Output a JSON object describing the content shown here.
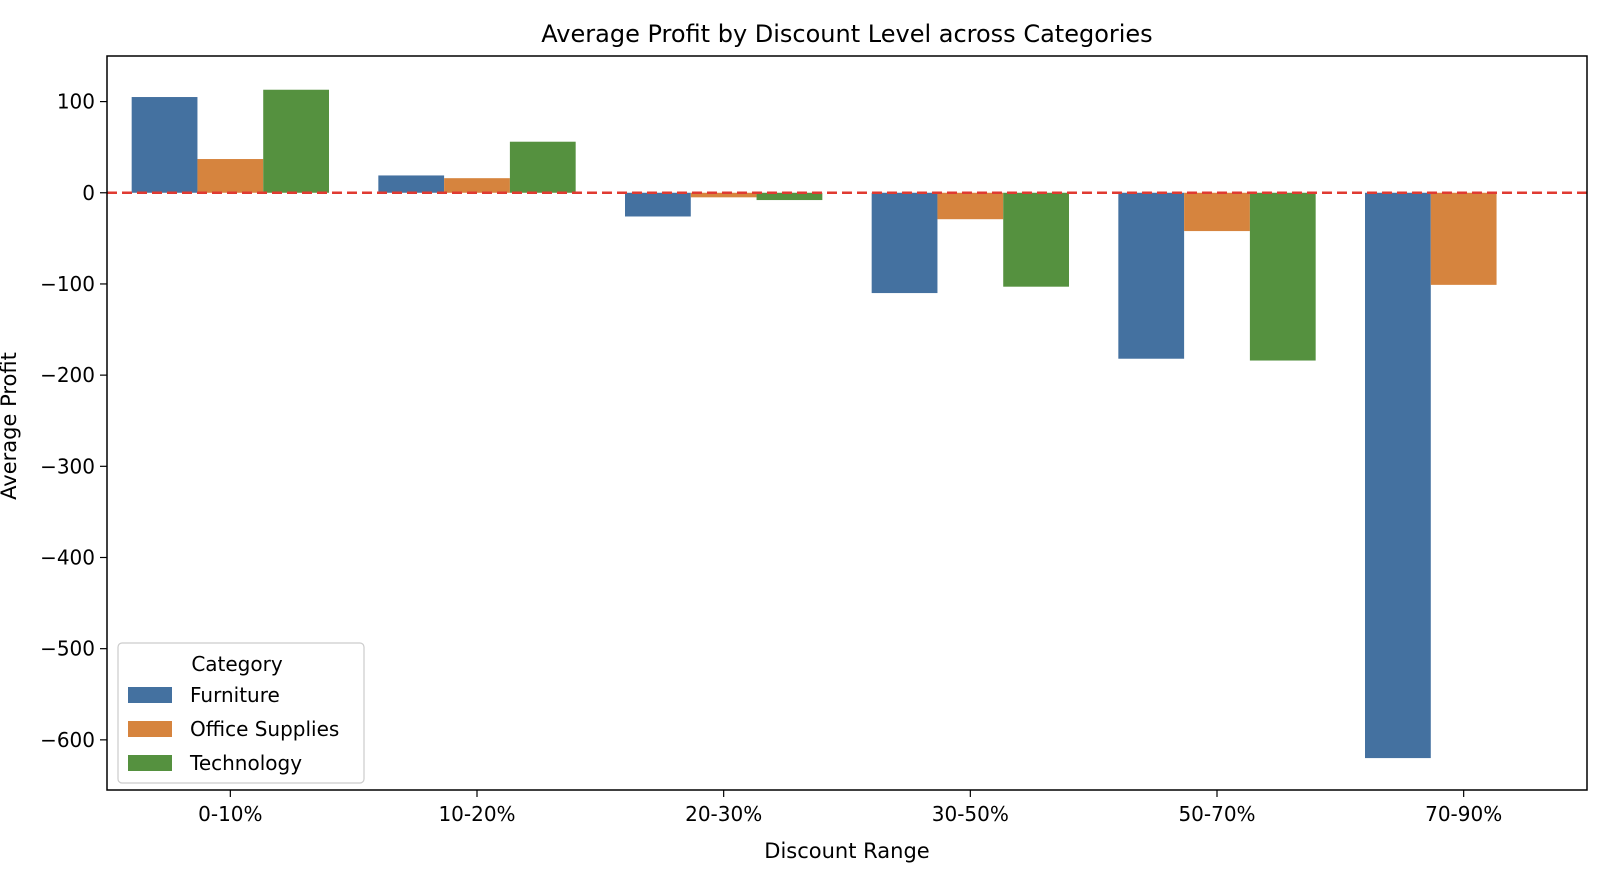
{
  "chart_data": {
    "type": "bar",
    "title": "Average Profit by Discount Level across Categories",
    "xlabel": "Discount Range",
    "ylabel": "Average Profit",
    "categories": [
      "0-10%",
      "10-20%",
      "20-30%",
      "30-50%",
      "50-70%",
      "70-90%"
    ],
    "series": [
      {
        "name": "Furniture",
        "color": "#4471a0",
        "values": [
          105,
          19,
          -26,
          -110,
          -182,
          -620
        ]
      },
      {
        "name": "Office Supplies",
        "color": "#d6843e",
        "values": [
          37,
          16,
          -5,
          -29,
          -42,
          -101
        ]
      },
      {
        "name": "Technology",
        "color": "#55913f",
        "values": [
          113,
          56,
          -8,
          -103,
          -184,
          null
        ]
      }
    ],
    "ylim": [
      -655,
      150
    ],
    "yticks": [
      100,
      0,
      -100,
      -200,
      -300,
      -400,
      -500,
      -600
    ],
    "ytick_labels": [
      "100",
      "0",
      "−100",
      "−200",
      "−300",
      "−400",
      "−500",
      "−600"
    ],
    "reference_line": {
      "y": 0,
      "color": "#e03a31",
      "style": "dashed"
    },
    "grid": false,
    "legend": {
      "title": "Category",
      "placement": "lower-left"
    }
  }
}
